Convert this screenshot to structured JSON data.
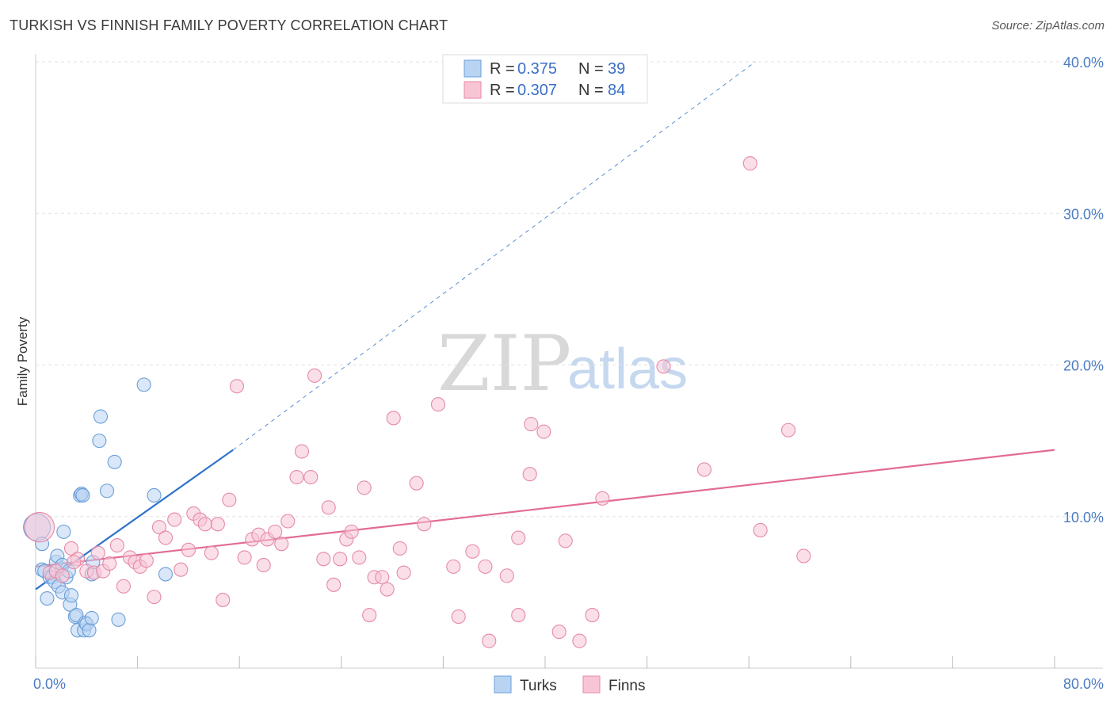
{
  "title": "TURKISH VS FINNISH FAMILY POVERTY CORRELATION CHART",
  "source": "Source: ZipAtlas.com",
  "watermark": {
    "zip": "ZIP",
    "atlas": "atlas"
  },
  "colors": {
    "turks_fill": "#b9d3f3",
    "turks_stroke": "#6a9fd8",
    "turks_line": "#2f73c9",
    "finns_fill": "#f8c5d5",
    "finns_stroke": "#e58aa8",
    "finns_line": "#e26b96",
    "grid": "#e2e2e2",
    "axis_text": "#4a7cc4"
  },
  "legend": {
    "rows": [
      {
        "r_label": "R = ",
        "r_value": "0.375",
        "n_label": "N = ",
        "n_value": "39"
      },
      {
        "r_label": "R = ",
        "r_value": "0.307",
        "n_label": "N = ",
        "n_value": "84"
      }
    ]
  },
  "bottom_legend": [
    "Turks",
    "Finns"
  ],
  "chart_data": {
    "type": "scatter",
    "title": "TURKISH VS FINNISH FAMILY POVERTY CORRELATION CHART",
    "xlabel": "",
    "ylabel": "Family Poverty",
    "xlim": [
      0,
      80
    ],
    "ylim": [
      0,
      40
    ],
    "x_tick_labels": [
      "0.0%",
      "80.0%"
    ],
    "y_ticks": [
      10,
      20,
      30,
      40
    ],
    "y_tick_labels": [
      "10.0%",
      "20.0%",
      "30.0%",
      "40.0%"
    ],
    "grid": true,
    "legend_position": "top-center",
    "series": [
      {
        "name": "Turks",
        "r": 0.375,
        "n": 39,
        "trend": {
          "x1": 0,
          "y1": 5.2,
          "x2": 15.5,
          "y2": 14.4,
          "dash_to_x": 56.5,
          "dash_to_y": 40
        },
        "points": [
          [
            0.1,
            9.3,
            2.0
          ],
          [
            0.5,
            8.2,
            1.0
          ],
          [
            0.5,
            6.5,
            1.0
          ],
          [
            0.7,
            6.4,
            1.0
          ],
          [
            0.9,
            4.6,
            1.0
          ],
          [
            1.1,
            6.0,
            1.0
          ],
          [
            1.3,
            6.0,
            1.0
          ],
          [
            1.5,
            5.7,
            1.0
          ],
          [
            1.6,
            7.0,
            1.0
          ],
          [
            1.7,
            7.4,
            1.0
          ],
          [
            1.8,
            5.4,
            1.0
          ],
          [
            2.1,
            5.0,
            1.0
          ],
          [
            2.1,
            6.8,
            1.0
          ],
          [
            2.2,
            9.0,
            1.0
          ],
          [
            2.4,
            6.0,
            1.0
          ],
          [
            2.6,
            6.4,
            1.0
          ],
          [
            2.7,
            4.2,
            1.0
          ],
          [
            2.8,
            4.8,
            1.0
          ],
          [
            3.1,
            3.4,
            1.0
          ],
          [
            3.2,
            3.5,
            1.0
          ],
          [
            3.3,
            2.5,
            1.0
          ],
          [
            3.5,
            11.4,
            1.0
          ],
          [
            3.6,
            11.5,
            1.0
          ],
          [
            3.7,
            11.4,
            1.0
          ],
          [
            3.8,
            2.5,
            1.0
          ],
          [
            3.9,
            3.0,
            1.0
          ],
          [
            4.0,
            2.9,
            1.0
          ],
          [
            4.2,
            2.5,
            1.0
          ],
          [
            4.4,
            3.3,
            1.0
          ],
          [
            4.4,
            6.2,
            1.0
          ],
          [
            4.5,
            7.0,
            1.0
          ],
          [
            5.1,
            16.6,
            1.0
          ],
          [
            5.0,
            15.0,
            1.0
          ],
          [
            5.6,
            11.7,
            1.0
          ],
          [
            6.2,
            13.6,
            1.0
          ],
          [
            6.5,
            3.2,
            1.0
          ],
          [
            8.5,
            18.7,
            1.0
          ],
          [
            9.3,
            11.4,
            1.0
          ],
          [
            10.2,
            6.2,
            1.0
          ]
        ]
      },
      {
        "name": "Finns",
        "r": 0.307,
        "n": 84,
        "trend": {
          "x1": 0,
          "y1": 6.7,
          "x2": 80,
          "y2": 14.4
        },
        "points": [
          [
            0.3,
            9.3,
            2.2
          ],
          [
            1.1,
            6.3,
            1.0
          ],
          [
            1.6,
            6.4,
            1.0
          ],
          [
            2.1,
            6.1,
            1.0
          ],
          [
            2.8,
            7.9,
            1.0
          ],
          [
            3.3,
            7.2,
            1.0
          ],
          [
            4.0,
            6.4,
            1.0
          ],
          [
            4.6,
            6.3,
            1.0
          ],
          [
            4.9,
            7.6,
            1.0
          ],
          [
            5.3,
            6.4,
            1.0
          ],
          [
            5.8,
            6.9,
            1.0
          ],
          [
            6.4,
            8.1,
            1.0
          ],
          [
            6.9,
            5.4,
            1.0
          ],
          [
            7.4,
            7.3,
            1.0
          ],
          [
            7.8,
            7.0,
            1.0
          ],
          [
            8.2,
            6.7,
            1.0
          ],
          [
            8.7,
            7.1,
            1.0
          ],
          [
            9.3,
            4.7,
            1.0
          ],
          [
            9.7,
            9.3,
            1.0
          ],
          [
            10.2,
            8.6,
            1.0
          ],
          [
            10.9,
            9.8,
            1.0
          ],
          [
            11.4,
            6.5,
            1.0
          ],
          [
            12.0,
            7.8,
            1.0
          ],
          [
            12.4,
            10.2,
            1.0
          ],
          [
            12.9,
            9.8,
            1.0
          ],
          [
            13.3,
            9.5,
            1.0
          ],
          [
            13.8,
            7.6,
            1.0
          ],
          [
            14.3,
            9.5,
            1.0
          ],
          [
            14.7,
            4.5,
            1.0
          ],
          [
            15.2,
            11.1,
            1.0
          ],
          [
            15.8,
            18.6,
            1.0
          ],
          [
            16.4,
            7.3,
            1.0
          ],
          [
            17.0,
            8.5,
            1.0
          ],
          [
            17.5,
            8.8,
            1.0
          ],
          [
            17.9,
            6.8,
            1.0
          ],
          [
            18.2,
            8.5,
            1.0
          ],
          [
            18.8,
            9.0,
            1.0
          ],
          [
            19.3,
            8.2,
            1.0
          ],
          [
            19.8,
            9.7,
            1.0
          ],
          [
            20.5,
            12.6,
            1.0
          ],
          [
            20.9,
            14.3,
            1.0
          ],
          [
            21.6,
            12.6,
            1.0
          ],
          [
            21.9,
            19.3,
            1.0
          ],
          [
            22.6,
            7.2,
            1.0
          ],
          [
            23.0,
            10.6,
            1.0
          ],
          [
            23.4,
            5.5,
            1.0
          ],
          [
            23.9,
            7.2,
            1.0
          ],
          [
            24.4,
            8.5,
            1.0
          ],
          [
            24.8,
            9.0,
            1.0
          ],
          [
            25.4,
            7.3,
            1.0
          ],
          [
            25.8,
            11.9,
            1.0
          ],
          [
            26.2,
            3.5,
            1.0
          ],
          [
            26.6,
            6.0,
            1.0
          ],
          [
            27.2,
            6.0,
            1.0
          ],
          [
            27.6,
            5.2,
            1.0
          ],
          [
            28.1,
            16.5,
            1.0
          ],
          [
            28.6,
            7.9,
            1.0
          ],
          [
            28.9,
            6.3,
            1.0
          ],
          [
            29.9,
            12.2,
            1.0
          ],
          [
            30.5,
            9.5,
            1.0
          ],
          [
            31.6,
            17.4,
            1.0
          ],
          [
            32.8,
            6.7,
            1.0
          ],
          [
            33.2,
            3.4,
            1.0
          ],
          [
            34.3,
            7.7,
            1.0
          ],
          [
            35.3,
            6.7,
            1.0
          ],
          [
            35.6,
            1.8,
            1.0
          ],
          [
            37.0,
            6.1,
            1.0
          ],
          [
            37.9,
            8.6,
            1.0
          ],
          [
            37.9,
            3.5,
            1.0
          ],
          [
            38.8,
            12.8,
            1.0
          ],
          [
            38.9,
            16.1,
            1.0
          ],
          [
            39.9,
            15.6,
            1.0
          ],
          [
            41.1,
            2.4,
            1.0
          ],
          [
            41.6,
            8.4,
            1.0
          ],
          [
            42.7,
            1.8,
            1.0
          ],
          [
            43.7,
            3.5,
            1.0
          ],
          [
            44.5,
            11.2,
            1.0
          ],
          [
            49.3,
            19.9,
            1.0
          ],
          [
            52.5,
            13.1,
            1.0
          ],
          [
            56.1,
            33.3,
            1.0
          ],
          [
            56.9,
            9.1,
            1.0
          ],
          [
            59.1,
            15.7,
            1.0
          ],
          [
            60.3,
            7.4,
            1.0
          ],
          [
            3.0,
            7.0,
            1.0
          ]
        ]
      }
    ]
  }
}
